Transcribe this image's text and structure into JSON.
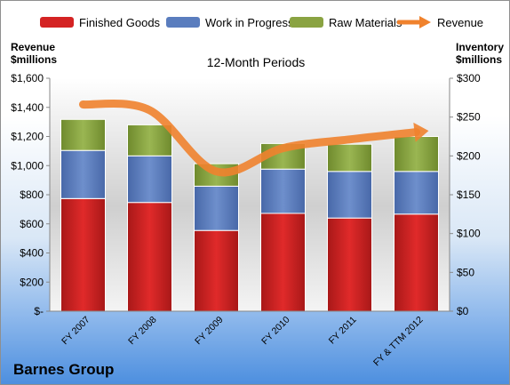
{
  "chart_data": {
    "type": "bar",
    "stacked": true,
    "title": "12-Month Periods",
    "left_axis_title": [
      "Revenue",
      "$millions"
    ],
    "right_axis_title": [
      "Inventory",
      "$millions"
    ],
    "company": "Barnes Group",
    "categories": [
      "FY 2007",
      "FY 2008",
      "FY 2009",
      "FY 2010",
      "FY 2011",
      "FY & TTM 2012"
    ],
    "series": [
      {
        "name": "Finished Goods",
        "axis": "right",
        "color": "#d42323",
        "values": [
          145,
          140,
          104,
          126,
          120,
          125
        ]
      },
      {
        "name": "Work in Progress",
        "axis": "right",
        "color": "#5a7dbe",
        "values": [
          62,
          60,
          57,
          57,
          60,
          55
        ]
      },
      {
        "name": "Raw Materials",
        "axis": "right",
        "color": "#8aa342",
        "values": [
          40,
          40,
          29,
          33,
          35,
          45
        ]
      }
    ],
    "line_series": {
      "name": "Revenue",
      "axis": "left",
      "color": "#f0822d",
      "values": [
        1420,
        1380,
        960,
        1120,
        1180,
        1230
      ]
    },
    "left_axis": {
      "min": 0,
      "max": 1600,
      "ticks": [
        "$-",
        "$200",
        "$400",
        "$600",
        "$800",
        "$1,000",
        "$1,200",
        "$1,400",
        "$1,600"
      ]
    },
    "right_axis": {
      "min": 0,
      "max": 300,
      "ticks": [
        "$0",
        "$50",
        "$100",
        "$150",
        "$200",
        "$250",
        "$300"
      ]
    },
    "grid": false,
    "legend_position": "top"
  }
}
